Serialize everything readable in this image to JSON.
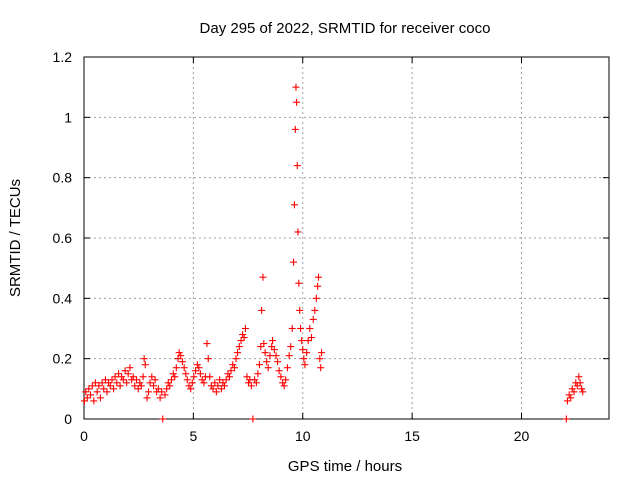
{
  "chart_data": {
    "type": "scatter",
    "title": "Day 295 of 2022, SRMTID for receiver coco",
    "xlabel": "GPS time / hours",
    "ylabel": "SRMTID / TECUs",
    "xlim": [
      0,
      24
    ],
    "ylim": [
      0,
      1.2
    ],
    "xticks": [
      0,
      5,
      10,
      15,
      20
    ],
    "yticks": [
      0,
      0.2,
      0.4,
      0.6,
      0.8,
      1,
      1.2
    ],
    "xtick_labels": [
      "0",
      "5",
      "10",
      "15",
      "20"
    ],
    "ytick_labels": [
      "0",
      "0.2",
      "0.4",
      "0.6",
      "0.8",
      "1",
      "1.2"
    ],
    "grid": true,
    "marker": "plus",
    "series": [
      {
        "name": "SRMTID",
        "color": "#ff0000",
        "points": [
          [
            0.02,
            0.06
          ],
          [
            0.08,
            0.09
          ],
          [
            0.15,
            0.07
          ],
          [
            0.22,
            0.1
          ],
          [
            0.3,
            0.08
          ],
          [
            0.38,
            0.11
          ],
          [
            0.45,
            0.06
          ],
          [
            0.52,
            0.12
          ],
          [
            0.6,
            0.09
          ],
          [
            0.68,
            0.11
          ],
          [
            0.75,
            0.07
          ],
          [
            0.83,
            0.12
          ],
          [
            0.9,
            0.1
          ],
          [
            0.98,
            0.13
          ],
          [
            1.05,
            0.09
          ],
          [
            1.12,
            0.12
          ],
          [
            1.2,
            0.11
          ],
          [
            1.28,
            0.13
          ],
          [
            1.35,
            0.1
          ],
          [
            1.42,
            0.14
          ],
          [
            1.5,
            0.12
          ],
          [
            1.58,
            0.15
          ],
          [
            1.65,
            0.11
          ],
          [
            1.72,
            0.14
          ],
          [
            1.8,
            0.13
          ],
          [
            1.88,
            0.16
          ],
          [
            1.95,
            0.12
          ],
          [
            2.02,
            0.15
          ],
          [
            2.1,
            0.17
          ],
          [
            2.18,
            0.13
          ],
          [
            2.25,
            0.14
          ],
          [
            2.32,
            0.11
          ],
          [
            2.4,
            0.13
          ],
          [
            2.48,
            0.1
          ],
          [
            2.55,
            0.12
          ],
          [
            2.62,
            0.11
          ],
          [
            2.7,
            0.14
          ],
          [
            2.75,
            0.2
          ],
          [
            2.8,
            0.18
          ],
          [
            2.88,
            0.07
          ],
          [
            2.95,
            0.09
          ],
          [
            3.02,
            0.12
          ],
          [
            3.1,
            0.14
          ],
          [
            3.18,
            0.11
          ],
          [
            3.25,
            0.13
          ],
          [
            3.32,
            0.09
          ],
          [
            3.4,
            0.1
          ],
          [
            3.48,
            0.07
          ],
          [
            3.55,
            0.09
          ],
          [
            3.6,
            0.0
          ],
          [
            3.7,
            0.08
          ],
          [
            3.78,
            0.1
          ],
          [
            3.85,
            0.12
          ],
          [
            3.92,
            0.11
          ],
          [
            4.0,
            0.13
          ],
          [
            4.08,
            0.15
          ],
          [
            4.15,
            0.14
          ],
          [
            4.22,
            0.17
          ],
          [
            4.3,
            0.2
          ],
          [
            4.35,
            0.22
          ],
          [
            4.42,
            0.21
          ],
          [
            4.5,
            0.19
          ],
          [
            4.58,
            0.17
          ],
          [
            4.65,
            0.15
          ],
          [
            4.72,
            0.13
          ],
          [
            4.8,
            0.11
          ],
          [
            4.88,
            0.1
          ],
          [
            4.95,
            0.12
          ],
          [
            5.02,
            0.14
          ],
          [
            5.1,
            0.16
          ],
          [
            5.18,
            0.18
          ],
          [
            5.25,
            0.17
          ],
          [
            5.32,
            0.15
          ],
          [
            5.4,
            0.13
          ],
          [
            5.48,
            0.12
          ],
          [
            5.55,
            0.14
          ],
          [
            5.62,
            0.25
          ],
          [
            5.68,
            0.2
          ],
          [
            5.75,
            0.14
          ],
          [
            5.82,
            0.11
          ],
          [
            5.9,
            0.1
          ],
          [
            5.98,
            0.12
          ],
          [
            6.05,
            0.09
          ],
          [
            6.12,
            0.11
          ],
          [
            6.2,
            0.13
          ],
          [
            6.28,
            0.1
          ],
          [
            6.35,
            0.12
          ],
          [
            6.42,
            0.11
          ],
          [
            6.5,
            0.13
          ],
          [
            6.58,
            0.15
          ],
          [
            6.65,
            0.14
          ],
          [
            6.72,
            0.16
          ],
          [
            6.8,
            0.18
          ],
          [
            6.88,
            0.17
          ],
          [
            6.95,
            0.2
          ],
          [
            7.02,
            0.22
          ],
          [
            7.1,
            0.24
          ],
          [
            7.18,
            0.26
          ],
          [
            7.25,
            0.28
          ],
          [
            7.32,
            0.27
          ],
          [
            7.38,
            0.3
          ],
          [
            7.45,
            0.14
          ],
          [
            7.52,
            0.12
          ],
          [
            7.58,
            0.13
          ],
          [
            7.65,
            0.11
          ],
          [
            7.72,
            0.0
          ],
          [
            7.8,
            0.13
          ],
          [
            7.88,
            0.12
          ],
          [
            7.95,
            0.15
          ],
          [
            8.02,
            0.18
          ],
          [
            8.08,
            0.24
          ],
          [
            8.12,
            0.36
          ],
          [
            8.18,
            0.47
          ],
          [
            8.22,
            0.25
          ],
          [
            8.28,
            0.22
          ],
          [
            8.35,
            0.19
          ],
          [
            8.42,
            0.17
          ],
          [
            8.5,
            0.21
          ],
          [
            8.58,
            0.24
          ],
          [
            8.62,
            0.26
          ],
          [
            8.7,
            0.23
          ],
          [
            8.78,
            0.21
          ],
          [
            8.85,
            0.19
          ],
          [
            8.92,
            0.16
          ],
          [
            9.0,
            0.14
          ],
          [
            9.08,
            0.12
          ],
          [
            9.15,
            0.11
          ],
          [
            9.22,
            0.13
          ],
          [
            9.3,
            0.17
          ],
          [
            9.38,
            0.21
          ],
          [
            9.45,
            0.24
          ],
          [
            9.52,
            0.3
          ],
          [
            9.58,
            0.52
          ],
          [
            9.62,
            0.71
          ],
          [
            9.66,
            0.96
          ],
          [
            9.69,
            1.1
          ],
          [
            9.72,
            1.05
          ],
          [
            9.75,
            0.84
          ],
          [
            9.78,
            0.62
          ],
          [
            9.82,
            0.45
          ],
          [
            9.86,
            0.36
          ],
          [
            9.9,
            0.3
          ],
          [
            9.95,
            0.26
          ],
          [
            10.0,
            0.23
          ],
          [
            10.05,
            0.2
          ],
          [
            10.1,
            0.18
          ],
          [
            10.18,
            0.22
          ],
          [
            10.25,
            0.26
          ],
          [
            10.32,
            0.3
          ],
          [
            10.4,
            0.27
          ],
          [
            10.48,
            0.33
          ],
          [
            10.55,
            0.36
          ],
          [
            10.62,
            0.4
          ],
          [
            10.68,
            0.44
          ],
          [
            10.72,
            0.47
          ],
          [
            10.78,
            0.2
          ],
          [
            10.82,
            0.17
          ],
          [
            10.86,
            0.22
          ],
          [
            22.05,
            0.0
          ],
          [
            22.1,
            0.06
          ],
          [
            22.18,
            0.08
          ],
          [
            22.25,
            0.07
          ],
          [
            22.32,
            0.1
          ],
          [
            22.4,
            0.09
          ],
          [
            22.48,
            0.12
          ],
          [
            22.55,
            0.11
          ],
          [
            22.62,
            0.14
          ],
          [
            22.68,
            0.12
          ],
          [
            22.75,
            0.1
          ],
          [
            22.8,
            0.09
          ]
        ]
      }
    ]
  }
}
